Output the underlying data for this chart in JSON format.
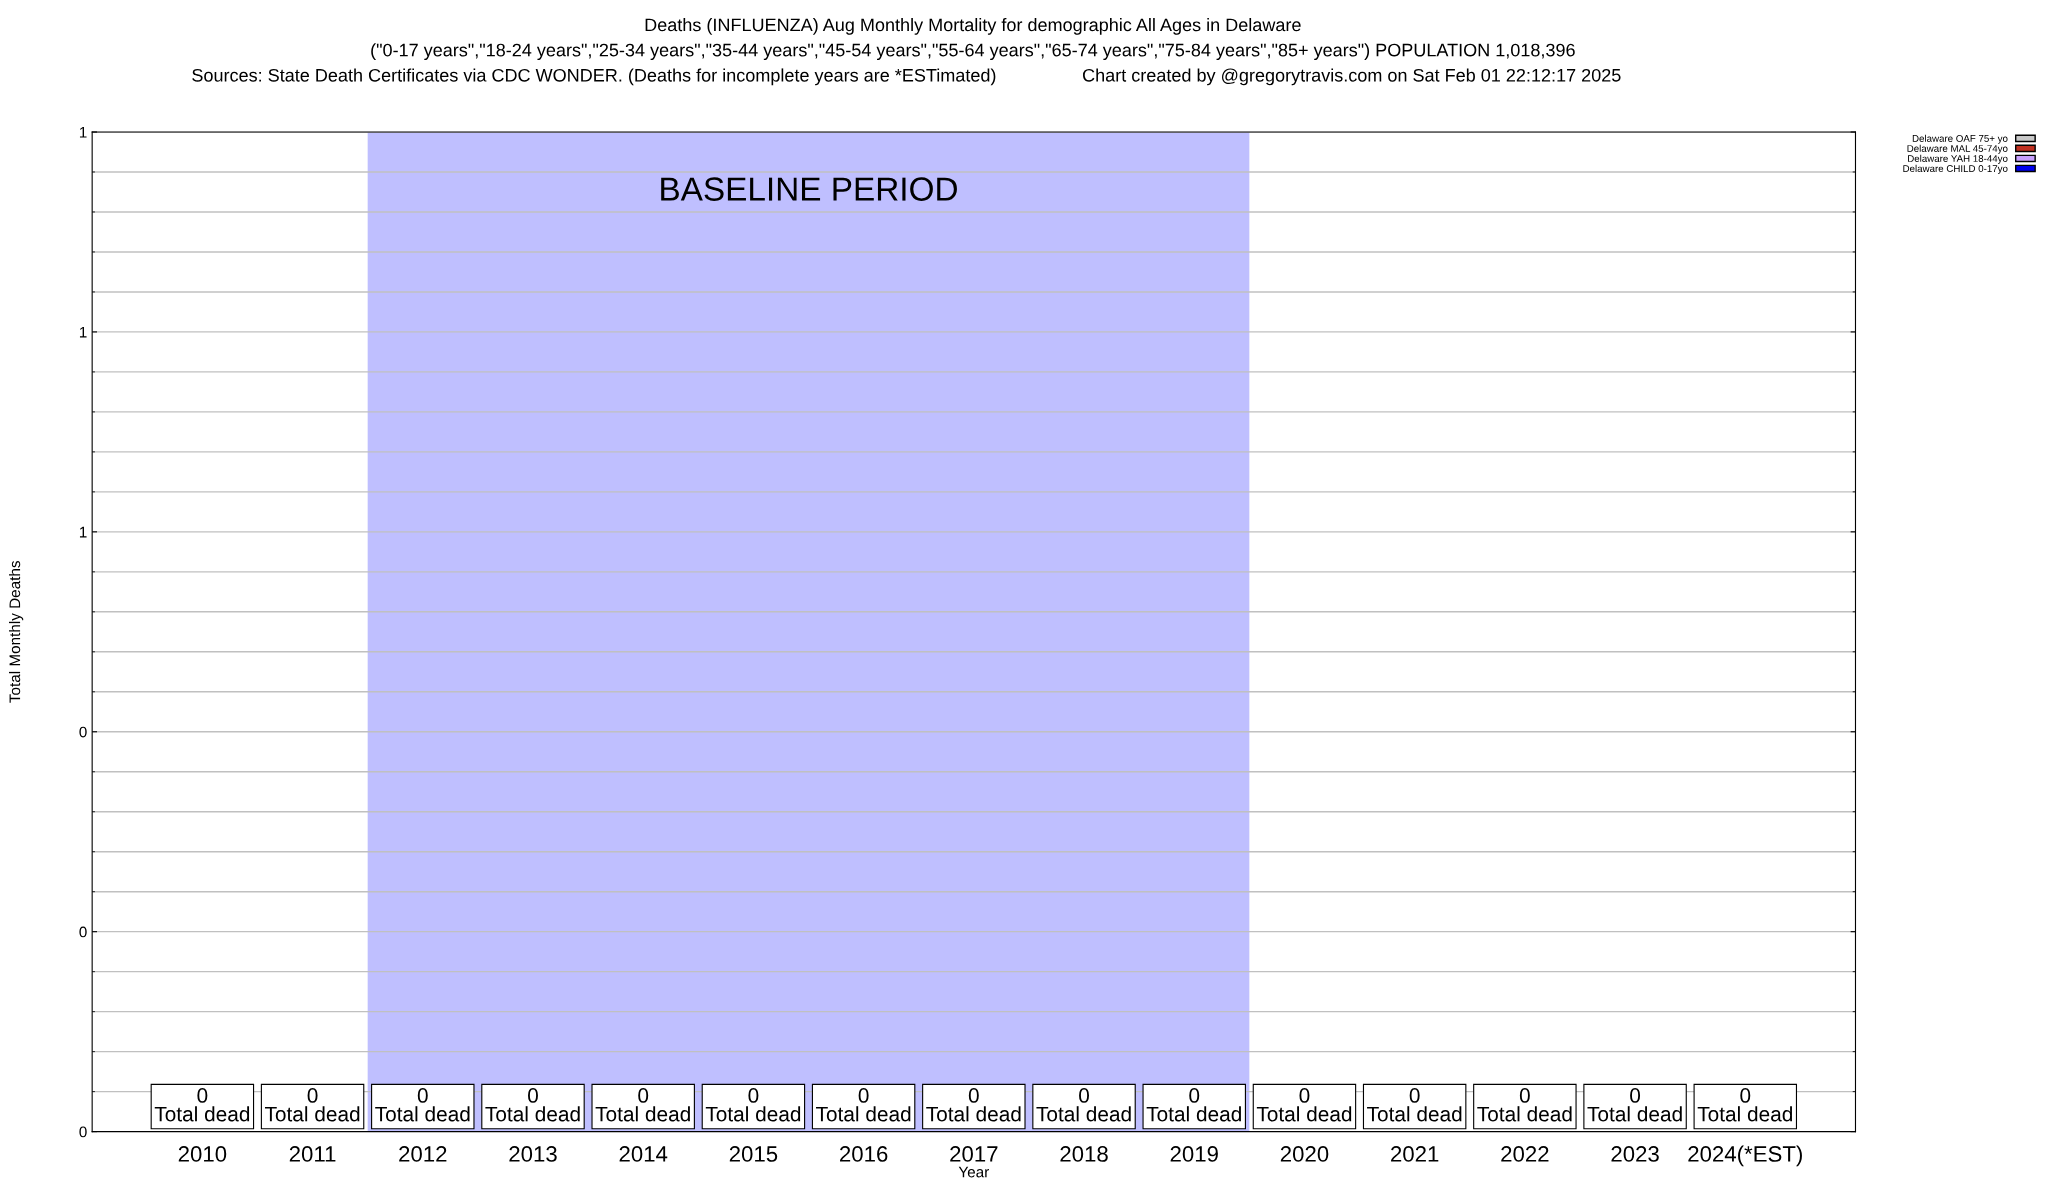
{
  "chart_data": {
    "type": "bar",
    "title": "Deaths (INFLUENZA) Aug Monthly Mortality for demographic All Ages in Delaware",
    "subtitle": "(\"0-17 years\",\"18-24 years\",\"25-34 years\",\"35-44 years\",\"45-54 years\",\"55-64 years\",\"65-74 years\",\"75-84 years\",\"85+ years\") POPULATION 1,018,396",
    "annotations": [
      "Sources: State Death Certificates via CDC WONDER. (Deaths for incomplete years are *ESTimated)",
      "Chart created by @gregorytravis.com on Sat Feb 01 22:12:17 2025"
    ],
    "xlabel": "Year",
    "ylabel": "Total Monthly Deaths",
    "categories": [
      "2010",
      "2011",
      "2012",
      "2013",
      "2014",
      "2015",
      "2016",
      "2017",
      "2018",
      "2019",
      "2020",
      "2021",
      "2022",
      "2023",
      "2024(*EST)"
    ],
    "series": [
      {
        "name": "Delaware CHILD 0-17yo",
        "color": "#0000ee",
        "values": [
          0,
          0,
          0,
          0,
          0,
          0,
          0,
          0,
          0,
          0,
          0,
          0,
          0,
          0,
          0
        ]
      },
      {
        "name": "Delaware YAH 18-44yo",
        "color": "#c8a0ff",
        "values": [
          0,
          0,
          0,
          0,
          0,
          0,
          0,
          0,
          0,
          0,
          0,
          0,
          0,
          0,
          0
        ]
      },
      {
        "name": "Delaware MAL 45-74yo",
        "color": "#c03020",
        "values": [
          0,
          0,
          0,
          0,
          0,
          0,
          0,
          0,
          0,
          0,
          0,
          0,
          0,
          0,
          0
        ]
      },
      {
        "name": "Delaware OAF 75+ yo",
        "color": "#c8c8c8",
        "values": [
          0,
          0,
          0,
          0,
          0,
          0,
          0,
          0,
          0,
          0,
          0,
          0,
          0,
          0,
          0
        ]
      }
    ],
    "totals": [
      "0\nTotal dead",
      "0\nTotal dead",
      "0\nTotal dead",
      "0\nTotal dead",
      "0\nTotal dead",
      "0\nTotal dead",
      "0\nTotal dead",
      "0\nTotal dead",
      "0\nTotal dead",
      "0\nTotal dead",
      "0\nTotal dead",
      "0\nTotal dead",
      "0\nTotal dead",
      "0\nTotal dead",
      "0\nTotal dead"
    ],
    "bands": [
      {
        "axis": "x",
        "from": "2012",
        "to": "2019",
        "label": "BASELINE PERIOD",
        "color": "#bfbfff"
      }
    ],
    "ylim": [
      0,
      1
    ],
    "yticks": [
      0,
      {
        "value": 0.2,
        "label": "0"
      },
      {
        "value": 0.4,
        "label": "0"
      },
      {
        "value": 0.6,
        "label": "1"
      },
      {
        "value": 0.8,
        "label": "1"
      },
      1
    ],
    "grid": "y",
    "legend": "top right"
  }
}
